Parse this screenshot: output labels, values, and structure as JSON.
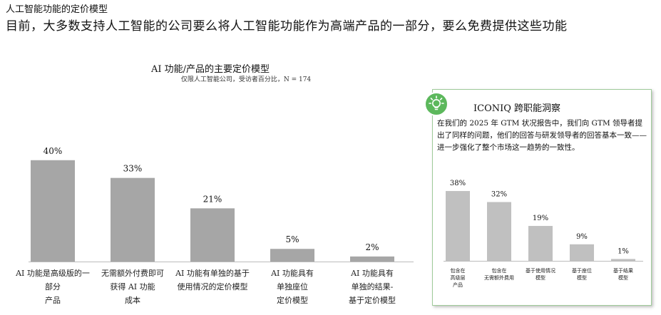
{
  "page": {
    "kicker": "人工智能功能的定价模型",
    "headline": "目前，大多数支持人工智能的公司要么将人工智能功能作为高端产品的一部分，要么免费提供这些功能"
  },
  "chart_data": [
    {
      "type": "bar",
      "title": "AI 功能/产品的主要定价模型",
      "subtitle": "仅限人工智能公司，受访者百分比，N = 174",
      "categories": [
        [
          "AI 功能是高级版的一",
          "部分",
          "产品"
        ],
        [
          "无需额外付费即可",
          "获得 AI 功能",
          "成本"
        ],
        [
          "AI 功能有单独的基于",
          "使用情况的定价模型"
        ],
        [
          "AI 功能具有",
          "单独座位",
          "定价模型"
        ],
        [
          "AI 功能具有",
          "单独的结果-",
          "基于定价模型"
        ]
      ],
      "values": [
        40,
        33,
        21,
        5,
        2
      ],
      "value_labels": [
        "40%",
        "33%",
        "21%",
        "5%",
        "2%"
      ],
      "ylim": [
        0,
        45
      ],
      "bar_color": "#a6a6a6"
    },
    {
      "type": "bar",
      "categories": [
        [
          "包含在",
          "高级层",
          "产品"
        ],
        [
          "包含在",
          "无需额外费用"
        ],
        [
          "基于使用情况",
          "模型"
        ],
        [
          "基于座位",
          "模型"
        ],
        [
          "基于结果",
          "模型"
        ]
      ],
      "values": [
        38,
        32,
        19,
        9,
        1
      ],
      "value_labels": [
        "38%",
        "32%",
        "19%",
        "9%",
        "1%"
      ],
      "ylim": [
        0,
        45
      ],
      "bar_color": "#c0c0c0"
    }
  ],
  "insight": {
    "title": "ICONIQ 跨职能洞察",
    "text": "在我们的 2025 年 GTM 状况报告中，我们向 GTM 领导者提出了同样的问题，他们的回答与研发领导者的回答基本一致——进一步强化了整个市场这一趋势的一致性。",
    "icon": "lightbulb-icon",
    "accent_color": "#5cb85c",
    "border_color": "#9fcb9a"
  }
}
